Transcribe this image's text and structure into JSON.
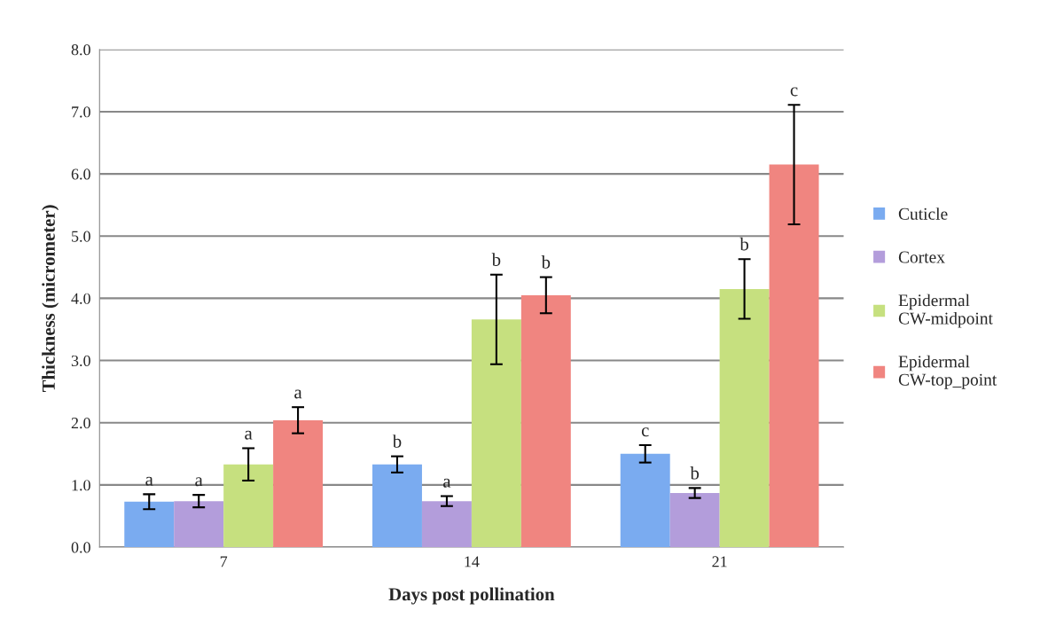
{
  "chart_data": {
    "type": "bar",
    "xlabel": "Days post pollination",
    "ylabel": "Thickness (micrometer)",
    "categories": [
      "7",
      "14",
      "21"
    ],
    "series": [
      {
        "name": "Cuticle",
        "color": "#7aabf0",
        "values": [
          0.73,
          1.33,
          1.5
        ],
        "errors": [
          0.12,
          0.13,
          0.14
        ]
      },
      {
        "name": "Cortex",
        "color": "#b39ddb",
        "values": [
          0.74,
          0.74,
          0.87
        ],
        "errors": [
          0.1,
          0.08,
          0.08
        ]
      },
      {
        "name": "Epidermal\nCW-midpoint",
        "color": "#c6e07f",
        "values": [
          1.33,
          3.66,
          4.15
        ],
        "errors": [
          0.26,
          0.72,
          0.48
        ]
      },
      {
        "name": "Epidermal\nCW-top_point",
        "color": "#f08580",
        "values": [
          2.04,
          4.05,
          6.15
        ],
        "errors": [
          0.21,
          0.29,
          0.96
        ]
      }
    ],
    "annotations": [
      "a",
      "a",
      "a",
      "a",
      "b",
      "a",
      "b",
      "b",
      "c",
      "b",
      "b",
      "c"
    ],
    "ylim": [
      0,
      8
    ],
    "yticks": [
      {
        "value": 0,
        "label": "0.0"
      },
      {
        "value": 1,
        "label": "1.0"
      },
      {
        "value": 2,
        "label": "2.0"
      },
      {
        "value": 3,
        "label": "3.0"
      },
      {
        "value": 4,
        "label": "4.0"
      },
      {
        "value": 5,
        "label": "5.0"
      },
      {
        "value": 6,
        "label": "6.0"
      },
      {
        "value": 7,
        "label": "7.0"
      },
      {
        "value": 8,
        "label": "8.0"
      }
    ],
    "grid": "y",
    "legend": "right"
  }
}
